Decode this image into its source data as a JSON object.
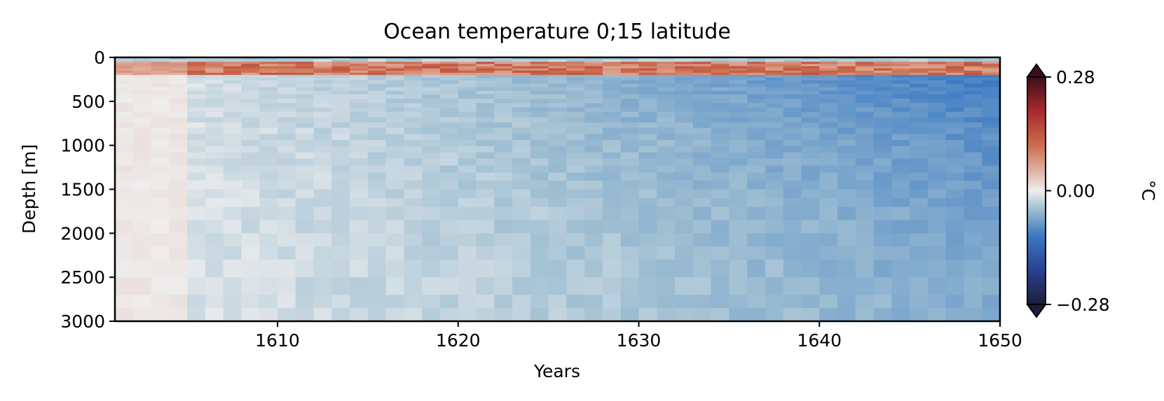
{
  "chart_data": {
    "type": "heatmap",
    "title": "Ocean temperature 0;15 latitude",
    "xlabel": "Years",
    "ylabel": "Depth [m]",
    "xlim": [
      1601,
      1650
    ],
    "ylim": [
      3000,
      0
    ],
    "xticks": [
      "1610",
      "1620",
      "1630",
      "1640",
      "1650"
    ],
    "yticks": [
      "0",
      "500",
      "1000",
      "1500",
      "2000",
      "2500",
      "3000"
    ],
    "colorbar": {
      "label": "°C",
      "range": [
        -0.28,
        0.28
      ],
      "ticks": [
        "0.28",
        "0.00",
        "−0.28"
      ],
      "extend": "both",
      "colormap": "diverging blue-white-red (balance)"
    },
    "approximate_profile": {
      "description": "Surface warm anomaly, cooling anomaly intensifying with time below",
      "surface_layer_depth_m": [
        50,
        200
      ],
      "surface_anomaly_C": 0.12,
      "depth_cooling_C_end": -0.1,
      "early_years_deep_anomaly_C": 0.01
    }
  }
}
